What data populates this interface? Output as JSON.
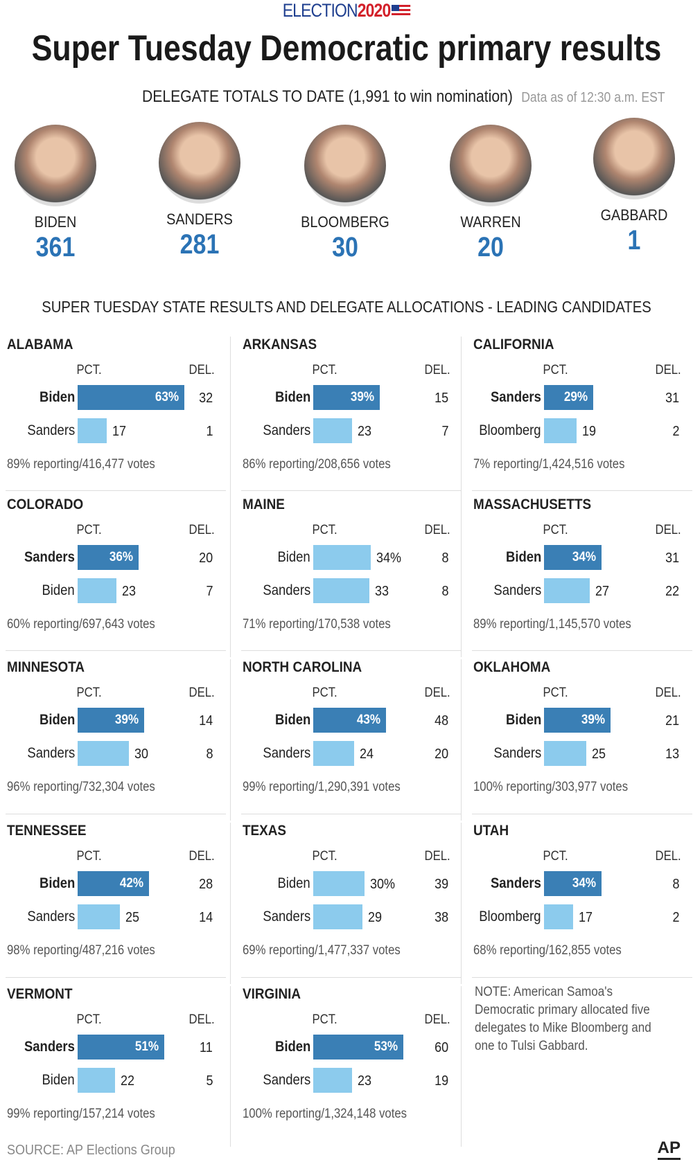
{
  "header": {
    "brand_word": "ELECTION",
    "brand_year": "2020",
    "title": "Super Tuesday Democratic primary results",
    "subtitle": "DELEGATE TOTALS TO DATE (1,991 to win nomination)",
    "as_of": "Data as of 12:30 a.m. EST"
  },
  "candidates": [
    {
      "name": "BIDEN",
      "delegates": "361"
    },
    {
      "name": "SANDERS",
      "delegates": "281"
    },
    {
      "name": "BLOOMBERG",
      "delegates": "30"
    },
    {
      "name": "WARREN",
      "delegates": "20"
    },
    {
      "name": "GABBARD",
      "delegates": "1"
    }
  ],
  "section_title": "SUPER TUESDAY STATE RESULTS AND DELEGATE ALLOCATIONS - LEADING CANDIDATES",
  "labels": {
    "pct": "PCT.",
    "del": "DEL."
  },
  "colors": {
    "leader_bar": "#3a7fb5",
    "second_bar": "#8ccbed",
    "delegate_number": "#2b73b5"
  },
  "chart_data": {
    "type": "bar",
    "title": "SUPER TUESDAY STATE RESULTS AND DELEGATE ALLOCATIONS - LEADING CANDIDATES",
    "xlim": [
      0,
      100
    ],
    "states": [
      {
        "state": "ALABAMA",
        "reporting": "89% reporting/416,477 votes",
        "rows": [
          {
            "name": "Biden",
            "pct": 63,
            "del": 32
          },
          {
            "name": "Sanders",
            "pct": 17,
            "del": 1
          }
        ]
      },
      {
        "state": "ARKANSAS",
        "reporting": "86% reporting/208,656 votes",
        "rows": [
          {
            "name": "Biden",
            "pct": 39,
            "del": 15
          },
          {
            "name": "Sanders",
            "pct": 23,
            "del": 7
          }
        ]
      },
      {
        "state": "CALIFORNIA",
        "reporting": "7% reporting/1,424,516 votes",
        "rows": [
          {
            "name": "Sanders",
            "pct": 29,
            "del": 31
          },
          {
            "name": "Bloomberg",
            "pct": 19,
            "del": 2
          }
        ]
      },
      {
        "state": "COLORADO",
        "reporting": "60% reporting/697,643 votes",
        "rows": [
          {
            "name": "Sanders",
            "pct": 36,
            "del": 20
          },
          {
            "name": "Biden",
            "pct": 23,
            "del": 7
          }
        ]
      },
      {
        "state": "MAINE",
        "reporting": "71% reporting/170,538 votes",
        "tie": true,
        "rows": [
          {
            "name": "Biden",
            "pct": 34,
            "del": 8
          },
          {
            "name": "Sanders",
            "pct": 33,
            "del": 8
          }
        ]
      },
      {
        "state": "MASSACHUSETTS",
        "reporting": "89% reporting/1,145,570 votes",
        "rows": [
          {
            "name": "Biden",
            "pct": 34,
            "del": 31
          },
          {
            "name": "Sanders",
            "pct": 27,
            "del": 22
          }
        ]
      },
      {
        "state": "MINNESOTA",
        "reporting": "96% reporting/732,304 votes",
        "rows": [
          {
            "name": "Biden",
            "pct": 39,
            "del": 14
          },
          {
            "name": "Sanders",
            "pct": 30,
            "del": 8
          }
        ]
      },
      {
        "state": "NORTH CAROLINA",
        "reporting": "99% reporting/1,290,391 votes",
        "rows": [
          {
            "name": "Biden",
            "pct": 43,
            "del": 48
          },
          {
            "name": "Sanders",
            "pct": 24,
            "del": 20
          }
        ]
      },
      {
        "state": "OKLAHOMA",
        "reporting": "100% reporting/303,977 votes",
        "rows": [
          {
            "name": "Biden",
            "pct": 39,
            "del": 21
          },
          {
            "name": "Sanders",
            "pct": 25,
            "del": 13
          }
        ]
      },
      {
        "state": "TENNESSEE",
        "reporting": "98% reporting/487,216 votes",
        "rows": [
          {
            "name": "Biden",
            "pct": 42,
            "del": 28
          },
          {
            "name": "Sanders",
            "pct": 25,
            "del": 14
          }
        ]
      },
      {
        "state": "TEXAS",
        "reporting": "69% reporting/1,477,337 votes",
        "tie": true,
        "rows": [
          {
            "name": "Biden",
            "pct": 30,
            "del": 39
          },
          {
            "name": "Sanders",
            "pct": 29,
            "del": 38
          }
        ]
      },
      {
        "state": "UTAH",
        "reporting": "68% reporting/162,855 votes",
        "rows": [
          {
            "name": "Sanders",
            "pct": 34,
            "del": 8
          },
          {
            "name": "Bloomberg",
            "pct": 17,
            "del": 2
          }
        ]
      },
      {
        "state": "VERMONT",
        "reporting": "99% reporting/157,214 votes",
        "rows": [
          {
            "name": "Sanders",
            "pct": 51,
            "del": 11
          },
          {
            "name": "Biden",
            "pct": 22,
            "del": 5
          }
        ]
      },
      {
        "state": "VIRGINIA",
        "reporting": "100% reporting/1,324,148 votes",
        "rows": [
          {
            "name": "Biden",
            "pct": 53,
            "del": 60
          },
          {
            "name": "Sanders",
            "pct": 23,
            "del": 19
          }
        ]
      }
    ]
  },
  "note": "NOTE: American Samoa's Democratic primary allocated five delegates to Mike Bloomberg and one to Tulsi Gabbard.",
  "footer": {
    "source": "SOURCE: AP Elections Group",
    "logo": "AP"
  }
}
